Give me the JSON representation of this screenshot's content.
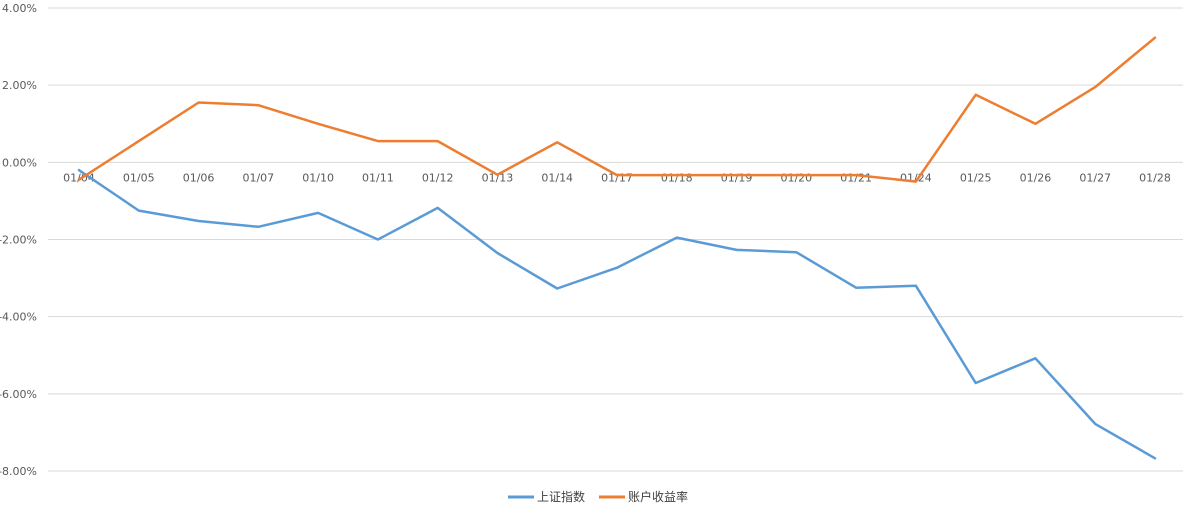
{
  "chart_data": {
    "type": "line",
    "categories": [
      "01/04",
      "01/05",
      "01/06",
      "01/07",
      "01/10",
      "01/11",
      "01/12",
      "01/13",
      "01/14",
      "01/17",
      "01/18",
      "01/19",
      "01/20",
      "01/21",
      "01/24",
      "01/25",
      "01/26",
      "01/27",
      "01/28"
    ],
    "series": [
      {
        "name": "上证指数",
        "color": "#5B9BD5",
        "values": [
          -0.2,
          -1.25,
          -1.52,
          -1.67,
          -1.31,
          -2.0,
          -1.18,
          -2.35,
          -3.27,
          -2.73,
          -1.95,
          -2.27,
          -2.33,
          -3.25,
          -3.2,
          -5.72,
          -5.08,
          -6.78,
          -7.67
        ]
      },
      {
        "name": "账户收益率",
        "color": "#ED7D31",
        "values": [
          -0.45,
          0.55,
          1.55,
          1.48,
          1.0,
          0.55,
          0.55,
          -0.32,
          0.52,
          -0.33,
          -0.33,
          -0.33,
          -0.33,
          -0.33,
          -0.5,
          1.75,
          1.0,
          1.95,
          3.23
        ]
      }
    ],
    "yticks": [
      "4.00%",
      "2.00%",
      "0.00%",
      "-2.00%",
      "-4.00%",
      "-6.00%",
      "-8.00%"
    ],
    "ylim": [
      -8,
      4
    ],
    "grid": true,
    "legend": "bottom"
  }
}
